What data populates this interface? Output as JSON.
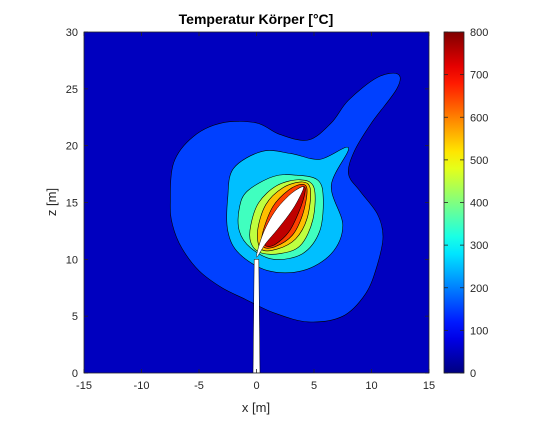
{
  "chart_data": {
    "type": "heatmap",
    "subtype": "filled-contour",
    "title": "Temperatur Körper [°C]",
    "xlabel": "x [m]",
    "ylabel": "z [m]",
    "xlim": [
      -15,
      15
    ],
    "ylim": [
      0,
      30
    ],
    "xticks": [
      -15,
      -10,
      -5,
      0,
      5,
      10,
      15
    ],
    "yticks": [
      0,
      5,
      10,
      15,
      20,
      25,
      30
    ],
    "colorbar": {
      "colormap": "jet",
      "range": [
        0,
        800
      ],
      "ticks": [
        0,
        100,
        200,
        300,
        400,
        500,
        600,
        700,
        800
      ]
    },
    "background_level": 50,
    "contour_levels": [
      {
        "value": 100,
        "color": "#0054ff"
      },
      {
        "value": 200,
        "color": "#00beff"
      },
      {
        "value": 300,
        "color": "#63ff9c"
      },
      {
        "value": 400,
        "color": "#ceff31"
      },
      {
        "value": 500,
        "color": "#ffc800"
      },
      {
        "value": 600,
        "color": "#ff6000"
      },
      {
        "value": 700,
        "color": "#d00000"
      },
      {
        "value": 800,
        "color": "#9a0000"
      }
    ],
    "regions": [
      {
        "level": 100,
        "outline": [
          [
            -7.5,
            15
          ],
          [
            -7.2,
            18.5
          ],
          [
            -5.5,
            20.8
          ],
          [
            -3,
            22
          ],
          [
            0,
            22
          ],
          [
            2,
            21
          ],
          [
            4.5,
            20.5
          ],
          [
            6.5,
            22
          ],
          [
            8,
            24
          ],
          [
            10.5,
            26
          ],
          [
            12.3,
            26.3
          ],
          [
            12.2,
            25
          ],
          [
            10,
            22
          ],
          [
            8.5,
            19.5
          ],
          [
            8,
            17.5
          ],
          [
            9,
            16
          ],
          [
            10.5,
            14
          ],
          [
            11,
            12
          ],
          [
            10.5,
            9.5
          ],
          [
            9.5,
            7
          ],
          [
            7.5,
            5
          ],
          [
            4.5,
            4.5
          ],
          [
            1.5,
            5.3
          ],
          [
            -1,
            6.5
          ],
          [
            -3,
            7.5
          ],
          [
            -5,
            9
          ],
          [
            -6.5,
            11
          ],
          [
            -7.3,
            13
          ]
        ]
      },
      {
        "level": 200,
        "outline": [
          [
            -2.5,
            15.5
          ],
          [
            -2,
            18
          ],
          [
            0.5,
            19.5
          ],
          [
            3,
            19.3
          ],
          [
            5.5,
            18.8
          ],
          [
            8,
            19.8
          ],
          [
            6.5,
            16.5
          ],
          [
            7.5,
            13
          ],
          [
            6.5,
            10.5
          ],
          [
            4,
            9
          ],
          [
            1,
            9
          ],
          [
            -1.5,
            10.5
          ],
          [
            -2.5,
            12.5
          ]
        ]
      },
      {
        "level": 300,
        "outline": [
          [
            -1.5,
            14.5
          ],
          [
            -0.8,
            16
          ],
          [
            1.5,
            17.3
          ],
          [
            3.5,
            17.4
          ],
          [
            5.3,
            17
          ],
          [
            5.8,
            15.5
          ],
          [
            5.5,
            12.5
          ],
          [
            4,
            10.5
          ],
          [
            1.5,
            10
          ],
          [
            -0.5,
            11
          ],
          [
            -1.5,
            12.5
          ]
        ]
      },
      {
        "level": 400,
        "outline": [
          [
            -0.5,
            13
          ],
          [
            0.2,
            15
          ],
          [
            1.8,
            16.5
          ],
          [
            3.8,
            17
          ],
          [
            5,
            16.3
          ],
          [
            4.9,
            13.5
          ],
          [
            3.8,
            11.2
          ],
          [
            2,
            10.5
          ],
          [
            0.3,
            10.6
          ],
          [
            -0.5,
            11.5
          ]
        ]
      },
      {
        "level": 500,
        "outline": [
          [
            0.1,
            12.5
          ],
          [
            0.8,
            14.8
          ],
          [
            2.3,
            16.3
          ],
          [
            4,
            16.8
          ],
          [
            4.7,
            16.1
          ],
          [
            4.4,
            13.6
          ],
          [
            3.4,
            11.8
          ],
          [
            1.8,
            10.9
          ],
          [
            0.4,
            10.9
          ]
        ]
      },
      {
        "level": 600,
        "outline": [
          [
            0.5,
            12.2
          ],
          [
            1.4,
            14.6
          ],
          [
            2.8,
            16.1
          ],
          [
            4,
            16.6
          ],
          [
            4.4,
            16
          ],
          [
            4,
            13.9
          ],
          [
            3.1,
            12.1
          ],
          [
            1.6,
            11.1
          ],
          [
            0.6,
            11.1
          ]
        ]
      },
      {
        "level": 700,
        "outline": [
          [
            0.8,
            12.1
          ],
          [
            1.9,
            14.5
          ],
          [
            3.2,
            15.9
          ],
          [
            4.1,
            16.4
          ],
          [
            4.2,
            15.8
          ],
          [
            3.7,
            14.2
          ],
          [
            2.8,
            12.4
          ],
          [
            1.6,
            11.3
          ],
          [
            0.8,
            11.2
          ]
        ]
      }
    ],
    "voids": [
      {
        "outline": [
          [
            0,
            10.2
          ],
          [
            0.8,
            11.4
          ],
          [
            1.8,
            12.6
          ],
          [
            2.8,
            13.9
          ],
          [
            3.5,
            15
          ],
          [
            4.1,
            16.3
          ],
          [
            3.6,
            16.2
          ],
          [
            2.8,
            15.6
          ],
          [
            1.8,
            14.5
          ],
          [
            1,
            13.2
          ],
          [
            0.4,
            11.8
          ]
        ]
      },
      {
        "outline": [
          [
            -0.2,
            10
          ],
          [
            0.2,
            10
          ],
          [
            0.3,
            0
          ],
          [
            -0.3,
            0
          ]
        ]
      }
    ],
    "grid": false
  }
}
